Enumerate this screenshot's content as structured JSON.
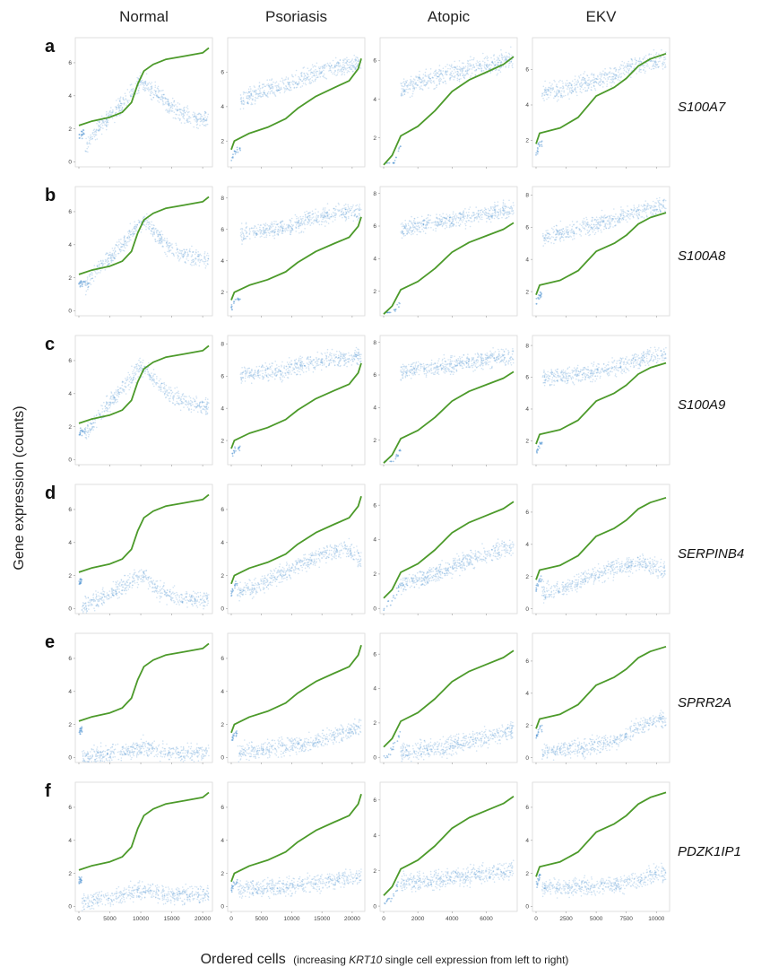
{
  "chart_data": {
    "type": "scatter",
    "columns": [
      "Normal",
      "Psoriasis",
      "Atopic",
      "EKV"
    ],
    "rows": [
      {
        "letter": "a",
        "gene": "S100A7"
      },
      {
        "letter": "b",
        "gene": "S100A8"
      },
      {
        "letter": "c",
        "gene": "S100A9"
      },
      {
        "letter": "d",
        "gene": "SERPINB4"
      },
      {
        "letter": "e",
        "gene": "SPRR2A"
      },
      {
        "letter": "f",
        "gene": "PDZK1IP1"
      }
    ],
    "ylabel": "Gene expression (counts)",
    "xlabel_main": "Ordered cells",
    "xlabel_paren_open": "(increasing ",
    "xlabel_gene": "KRT10",
    "xlabel_paren_close": " single cell expression from left to right)",
    "x_ticks": {
      "Normal": [
        0,
        5000,
        10000,
        15000,
        20000
      ],
      "Psoriasis": [
        0,
        5000,
        10000,
        15000,
        20000
      ],
      "Atopic": [
        0,
        2000,
        4000,
        6000
      ],
      "EKV": [
        0,
        2500,
        5000,
        7500,
        10000
      ]
    },
    "x_max": {
      "Normal": 21000,
      "Psoriasis": 21500,
      "Atopic": 7600,
      "EKV": 10800
    },
    "y_ticks": [
      [
        [
          0,
          2,
          4,
          6
        ],
        [
          2,
          4,
          6
        ],
        [
          2,
          4,
          6
        ],
        [
          2,
          4,
          6
        ]
      ],
      [
        [
          0,
          2,
          4,
          6
        ],
        [
          2,
          4,
          6,
          8
        ],
        [
          2,
          4,
          6,
          8
        ],
        [
          2,
          4,
          6,
          8
        ]
      ],
      [
        [
          0,
          2,
          4,
          6
        ],
        [
          2,
          4,
          6,
          8
        ],
        [
          2,
          4,
          6,
          8
        ],
        [
          2,
          4,
          6,
          8
        ]
      ],
      [
        [
          0,
          2,
          4,
          6
        ],
        [
          0,
          2,
          4,
          6
        ],
        [
          0,
          2,
          4,
          6
        ],
        [
          0,
          2,
          4,
          6
        ]
      ],
      [
        [
          0,
          2,
          4,
          6
        ],
        [
          0,
          2,
          4,
          6
        ],
        [
          0,
          2,
          4,
          6
        ],
        [
          0,
          2,
          4,
          6
        ]
      ],
      [
        [
          0,
          2,
          4,
          6
        ],
        [
          0,
          2,
          4,
          6
        ],
        [
          0,
          2,
          4,
          6
        ],
        [
          0,
          2,
          4,
          6
        ]
      ]
    ],
    "y_range": [
      [
        [
          -0.3,
          7.3
        ],
        [
          0.5,
          7.8
        ],
        [
          0.5,
          7.0
        ],
        [
          0.5,
          7.6
        ]
      ],
      [
        [
          -0.3,
          7.3
        ],
        [
          0.5,
          8.5
        ],
        [
          0.5,
          8.2
        ],
        [
          0.5,
          8.3
        ]
      ],
      [
        [
          -0.3,
          7.3
        ],
        [
          0.5,
          8.3
        ],
        [
          0.5,
          8.2
        ],
        [
          0.5,
          8.4
        ]
      ],
      [
        [
          -0.3,
          7.3
        ],
        [
          -0.3,
          7.3
        ],
        [
          -0.3,
          7.0
        ],
        [
          -0.3,
          7.5
        ]
      ],
      [
        [
          -0.3,
          7.3
        ],
        [
          -0.3,
          7.3
        ],
        [
          -0.3,
          7.0
        ],
        [
          -0.3,
          7.5
        ]
      ],
      [
        [
          -0.3,
          7.3
        ],
        [
          -0.3,
          7.3
        ],
        [
          -0.3,
          6.8
        ],
        [
          -0.3,
          7.3
        ]
      ]
    ],
    "krt10_trend": {
      "Normal": [
        [
          0,
          2.2
        ],
        [
          2000,
          2.45
        ],
        [
          5000,
          2.7
        ],
        [
          7000,
          3.0
        ],
        [
          8500,
          3.6
        ],
        [
          9500,
          4.7
        ],
        [
          10500,
          5.5
        ],
        [
          12000,
          5.9
        ],
        [
          14000,
          6.2
        ],
        [
          17000,
          6.4
        ],
        [
          20000,
          6.6
        ],
        [
          21000,
          6.9
        ]
      ],
      "Psoriasis": [
        [
          0,
          1.5
        ],
        [
          500,
          2.0
        ],
        [
          3000,
          2.45
        ],
        [
          6000,
          2.8
        ],
        [
          9000,
          3.3
        ],
        [
          11000,
          3.9
        ],
        [
          14000,
          4.6
        ],
        [
          17000,
          5.1
        ],
        [
          19500,
          5.5
        ],
        [
          21000,
          6.2
        ],
        [
          21500,
          6.8
        ]
      ],
      "Atopic": [
        [
          0,
          0.6
        ],
        [
          500,
          1.1
        ],
        [
          1000,
          2.1
        ],
        [
          2000,
          2.6
        ],
        [
          3000,
          3.4
        ],
        [
          4000,
          4.4
        ],
        [
          5000,
          5.0
        ],
        [
          6000,
          5.4
        ],
        [
          7000,
          5.8
        ],
        [
          7600,
          6.2
        ]
      ],
      "EKV": [
        [
          0,
          1.8
        ],
        [
          300,
          2.4
        ],
        [
          2000,
          2.7
        ],
        [
          3500,
          3.3
        ],
        [
          5000,
          4.5
        ],
        [
          6500,
          5.0
        ],
        [
          7500,
          5.5
        ],
        [
          8500,
          6.2
        ],
        [
          9500,
          6.6
        ],
        [
          10800,
          6.9
        ]
      ]
    },
    "gene_expression_trend": {
      "S100A7": {
        "Normal": [
          [
            1000,
            0.9
          ],
          [
            3000,
            2.0
          ],
          [
            5000,
            2.7
          ],
          [
            7000,
            3.5
          ],
          [
            9000,
            4.4
          ],
          [
            10000,
            4.9
          ],
          [
            11000,
            4.7
          ],
          [
            13000,
            4.0
          ],
          [
            15000,
            3.3
          ],
          [
            18000,
            2.7
          ],
          [
            21000,
            2.5
          ]
        ],
        "Psoriasis": [
          [
            1500,
            4.3
          ],
          [
            5000,
            4.9
          ],
          [
            9000,
            5.2
          ],
          [
            12000,
            5.6
          ],
          [
            15000,
            6.1
          ],
          [
            18000,
            6.3
          ],
          [
            21000,
            6.5
          ]
        ],
        "Atopic": [
          [
            1000,
            4.5
          ],
          [
            2500,
            5.0
          ],
          [
            4000,
            5.3
          ],
          [
            5500,
            5.7
          ],
          [
            7000,
            6.0
          ],
          [
            7600,
            6.1
          ]
        ],
        "EKV": [
          [
            500,
            4.7
          ],
          [
            2500,
            4.9
          ],
          [
            4500,
            5.3
          ],
          [
            6500,
            5.7
          ],
          [
            8500,
            6.3
          ],
          [
            10000,
            6.5
          ],
          [
            10800,
            6.5
          ]
        ]
      },
      "S100A8": {
        "Normal": [
          [
            1000,
            1.4
          ],
          [
            3000,
            2.5
          ],
          [
            5000,
            3.2
          ],
          [
            7000,
            4.0
          ],
          [
            9000,
            5.0
          ],
          [
            10000,
            5.4
          ],
          [
            11000,
            5.2
          ],
          [
            13000,
            4.4
          ],
          [
            15000,
            3.7
          ],
          [
            18000,
            3.3
          ],
          [
            21000,
            3.1
          ]
        ],
        "Psoriasis": [
          [
            1500,
            5.7
          ],
          [
            5000,
            5.9
          ],
          [
            9000,
            6.1
          ],
          [
            12000,
            6.5
          ],
          [
            15000,
            6.9
          ],
          [
            18000,
            7.1
          ],
          [
            21000,
            7.1
          ]
        ],
        "Atopic": [
          [
            1000,
            5.8
          ],
          [
            2500,
            6.1
          ],
          [
            4000,
            6.4
          ],
          [
            5500,
            6.7
          ],
          [
            7000,
            6.9
          ],
          [
            7600,
            7.0
          ]
        ],
        "EKV": [
          [
            500,
            5.4
          ],
          [
            2500,
            5.7
          ],
          [
            4500,
            6.1
          ],
          [
            6500,
            6.5
          ],
          [
            8500,
            7.0
          ],
          [
            10000,
            7.3
          ],
          [
            10800,
            7.4
          ]
        ]
      },
      "S100A9": {
        "Normal": [
          [
            1000,
            1.5
          ],
          [
            3000,
            2.6
          ],
          [
            5000,
            3.4
          ],
          [
            7000,
            4.3
          ],
          [
            9000,
            5.3
          ],
          [
            10000,
            5.6
          ],
          [
            11000,
            5.4
          ],
          [
            13000,
            4.5
          ],
          [
            15000,
            3.8
          ],
          [
            18000,
            3.4
          ],
          [
            21000,
            3.2
          ]
        ],
        "Psoriasis": [
          [
            1500,
            6.1
          ],
          [
            5000,
            6.2
          ],
          [
            9000,
            6.4
          ],
          [
            12000,
            6.7
          ],
          [
            15000,
            7.0
          ],
          [
            18000,
            7.1
          ],
          [
            21000,
            7.2
          ]
        ],
        "Atopic": [
          [
            1000,
            6.2
          ],
          [
            2500,
            6.4
          ],
          [
            4000,
            6.6
          ],
          [
            5500,
            6.9
          ],
          [
            7000,
            7.1
          ],
          [
            7600,
            7.1
          ]
        ],
        "EKV": [
          [
            500,
            5.9
          ],
          [
            2500,
            6.1
          ],
          [
            4500,
            6.3
          ],
          [
            6500,
            6.6
          ],
          [
            8500,
            7.1
          ],
          [
            10000,
            7.4
          ],
          [
            10800,
            7.4
          ]
        ]
      },
      "SERPINB4": {
        "Normal": [
          [
            500,
            0.15
          ],
          [
            3000,
            0.5
          ],
          [
            6000,
            1.1
          ],
          [
            8500,
            1.7
          ],
          [
            10000,
            2.0
          ],
          [
            11000,
            1.8
          ],
          [
            13000,
            1.1
          ],
          [
            16000,
            0.7
          ],
          [
            19000,
            0.6
          ],
          [
            21000,
            0.55
          ]
        ],
        "Psoriasis": [
          [
            1000,
            0.9
          ],
          [
            4000,
            1.3
          ],
          [
            8000,
            2.0
          ],
          [
            11000,
            2.6
          ],
          [
            14000,
            3.1
          ],
          [
            17000,
            3.5
          ],
          [
            19500,
            3.6
          ],
          [
            21500,
            2.9
          ]
        ],
        "Atopic": [
          [
            1000,
            1.3
          ],
          [
            2500,
            1.8
          ],
          [
            4000,
            2.4
          ],
          [
            5500,
            3.0
          ],
          [
            7000,
            3.5
          ],
          [
            7600,
            3.5
          ]
        ],
        "EKV": [
          [
            500,
            1.0
          ],
          [
            2500,
            1.3
          ],
          [
            4500,
            2.0
          ],
          [
            6500,
            2.5
          ],
          [
            8500,
            2.9
          ],
          [
            10000,
            2.5
          ],
          [
            10800,
            2.4
          ]
        ]
      },
      "SPRR2A": {
        "Normal": [
          [
            500,
            0.05
          ],
          [
            4000,
            0.15
          ],
          [
            8000,
            0.4
          ],
          [
            10000,
            0.65
          ],
          [
            12000,
            0.5
          ],
          [
            15000,
            0.3
          ],
          [
            18000,
            0.25
          ],
          [
            21000,
            0.3
          ]
        ],
        "Psoriasis": [
          [
            1000,
            0.3
          ],
          [
            5000,
            0.5
          ],
          [
            9000,
            0.7
          ],
          [
            13000,
            0.9
          ],
          [
            17000,
            1.3
          ],
          [
            21500,
            2.0
          ]
        ],
        "Atopic": [
          [
            1000,
            0.3
          ],
          [
            2500,
            0.4
          ],
          [
            4000,
            0.7
          ],
          [
            5500,
            1.0
          ],
          [
            7000,
            1.4
          ],
          [
            7600,
            1.6
          ]
        ],
        "EKV": [
          [
            500,
            0.4
          ],
          [
            2500,
            0.5
          ],
          [
            4500,
            0.7
          ],
          [
            6500,
            1.0
          ],
          [
            8500,
            1.9
          ],
          [
            10000,
            2.4
          ],
          [
            10800,
            2.3
          ]
        ]
      },
      "PDZK1IP1": {
        "Normal": [
          [
            500,
            0.2
          ],
          [
            3000,
            0.4
          ],
          [
            6000,
            0.6
          ],
          [
            8500,
            0.85
          ],
          [
            10000,
            1.0
          ],
          [
            12000,
            0.85
          ],
          [
            15000,
            0.7
          ],
          [
            18000,
            0.7
          ],
          [
            21000,
            0.75
          ]
        ],
        "Psoriasis": [
          [
            1000,
            1.0
          ],
          [
            5000,
            1.1
          ],
          [
            9000,
            1.2
          ],
          [
            13000,
            1.4
          ],
          [
            17000,
            1.6
          ],
          [
            21500,
            1.8
          ]
        ],
        "Atopic": [
          [
            1000,
            1.35
          ],
          [
            2500,
            1.4
          ],
          [
            4000,
            1.6
          ],
          [
            5500,
            1.8
          ],
          [
            7000,
            2.0
          ],
          [
            7600,
            2.1
          ]
        ],
        "EKV": [
          [
            500,
            1.1
          ],
          [
            2500,
            1.15
          ],
          [
            4500,
            1.2
          ],
          [
            6500,
            1.3
          ],
          [
            8500,
            1.6
          ],
          [
            10000,
            2.0
          ],
          [
            10800,
            2.0
          ]
        ]
      }
    },
    "colors": {
      "cells": "#5b9bd5",
      "krt10": "#4c9a2a",
      "axis": "#bbbbbb",
      "text": "#222222"
    }
  }
}
